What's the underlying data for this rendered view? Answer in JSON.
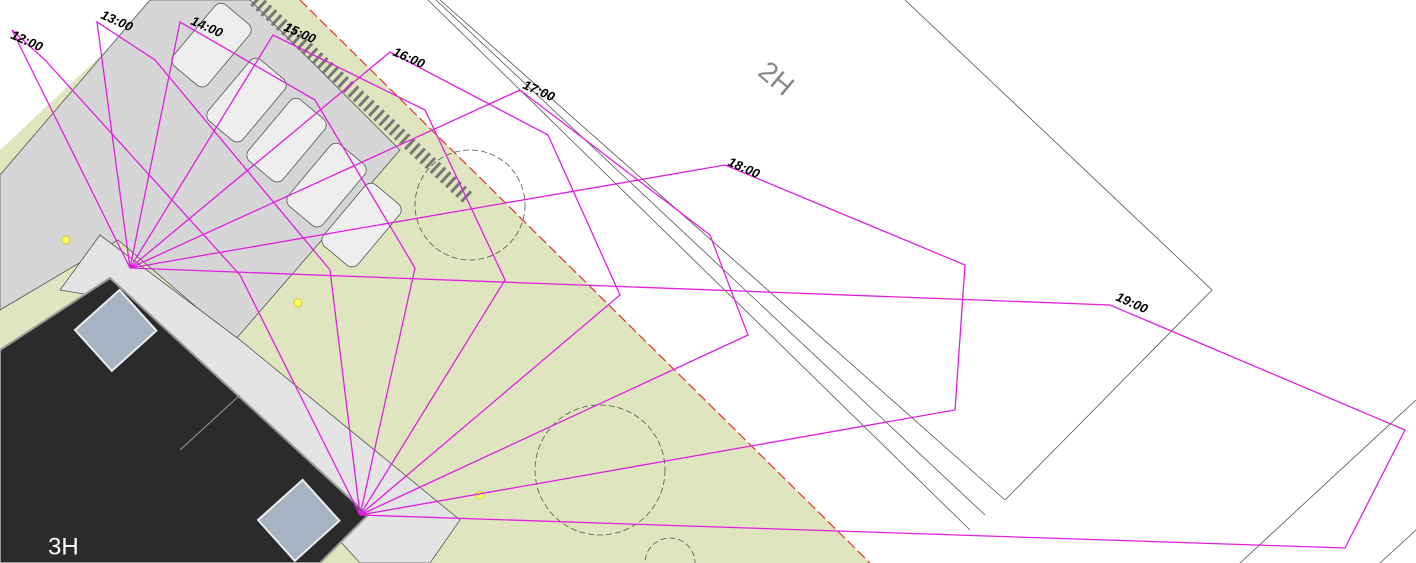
{
  "buildings": {
    "left": "3H",
    "right": "2H"
  },
  "times": [
    "12:00",
    "13:00",
    "14:00",
    "15:00",
    "16:00",
    "17:00",
    "18:00",
    "19:00"
  ]
}
